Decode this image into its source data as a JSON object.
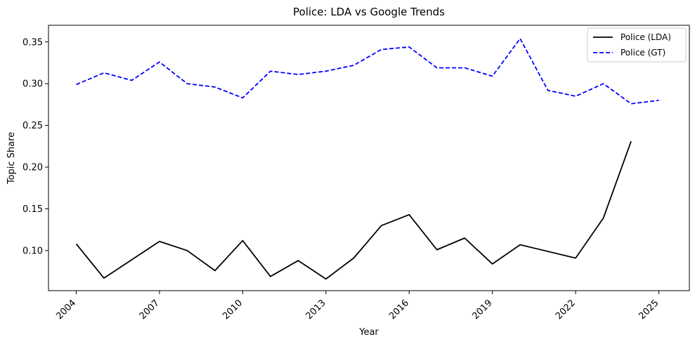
{
  "chart_data": {
    "type": "line",
    "title": "Police: LDA vs Google Trends",
    "xlabel": "Year",
    "ylabel": "Topic Share",
    "x": [
      2004,
      2005,
      2006,
      2007,
      2008,
      2009,
      2010,
      2011,
      2012,
      2013,
      2014,
      2015,
      2016,
      2017,
      2018,
      2019,
      2020,
      2021,
      2022,
      2023,
      2024,
      2025
    ],
    "xticks": [
      "2004",
      "2007",
      "2010",
      "2013",
      "2016",
      "2019",
      "2022",
      "2025"
    ],
    "yticks": [
      "0.10",
      "0.15",
      "0.20",
      "0.25",
      "0.30",
      "0.35"
    ],
    "xlim": [
      2003.0,
      2026.1
    ],
    "ylim": [
      0.052,
      0.37
    ],
    "grid": false,
    "legend_position": "top-right",
    "series": [
      {
        "name": "Police (LDA)",
        "color": "#000000",
        "style": "solid",
        "values": [
          0.108,
          0.067,
          0.089,
          0.111,
          0.1,
          0.076,
          0.112,
          0.069,
          0.088,
          0.066,
          0.091,
          0.13,
          0.143,
          0.101,
          0.115,
          0.084,
          0.107,
          null,
          0.091,
          0.139,
          0.231,
          null
        ]
      },
      {
        "name": "Police (GT)",
        "color": "#0000ff",
        "style": "dashed",
        "values": [
          0.299,
          0.313,
          0.304,
          0.326,
          0.3,
          0.296,
          0.283,
          0.315,
          0.311,
          0.315,
          0.322,
          0.341,
          0.344,
          0.319,
          0.319,
          0.309,
          0.354,
          0.292,
          0.285,
          0.3,
          0.276,
          0.28
        ]
      }
    ]
  }
}
